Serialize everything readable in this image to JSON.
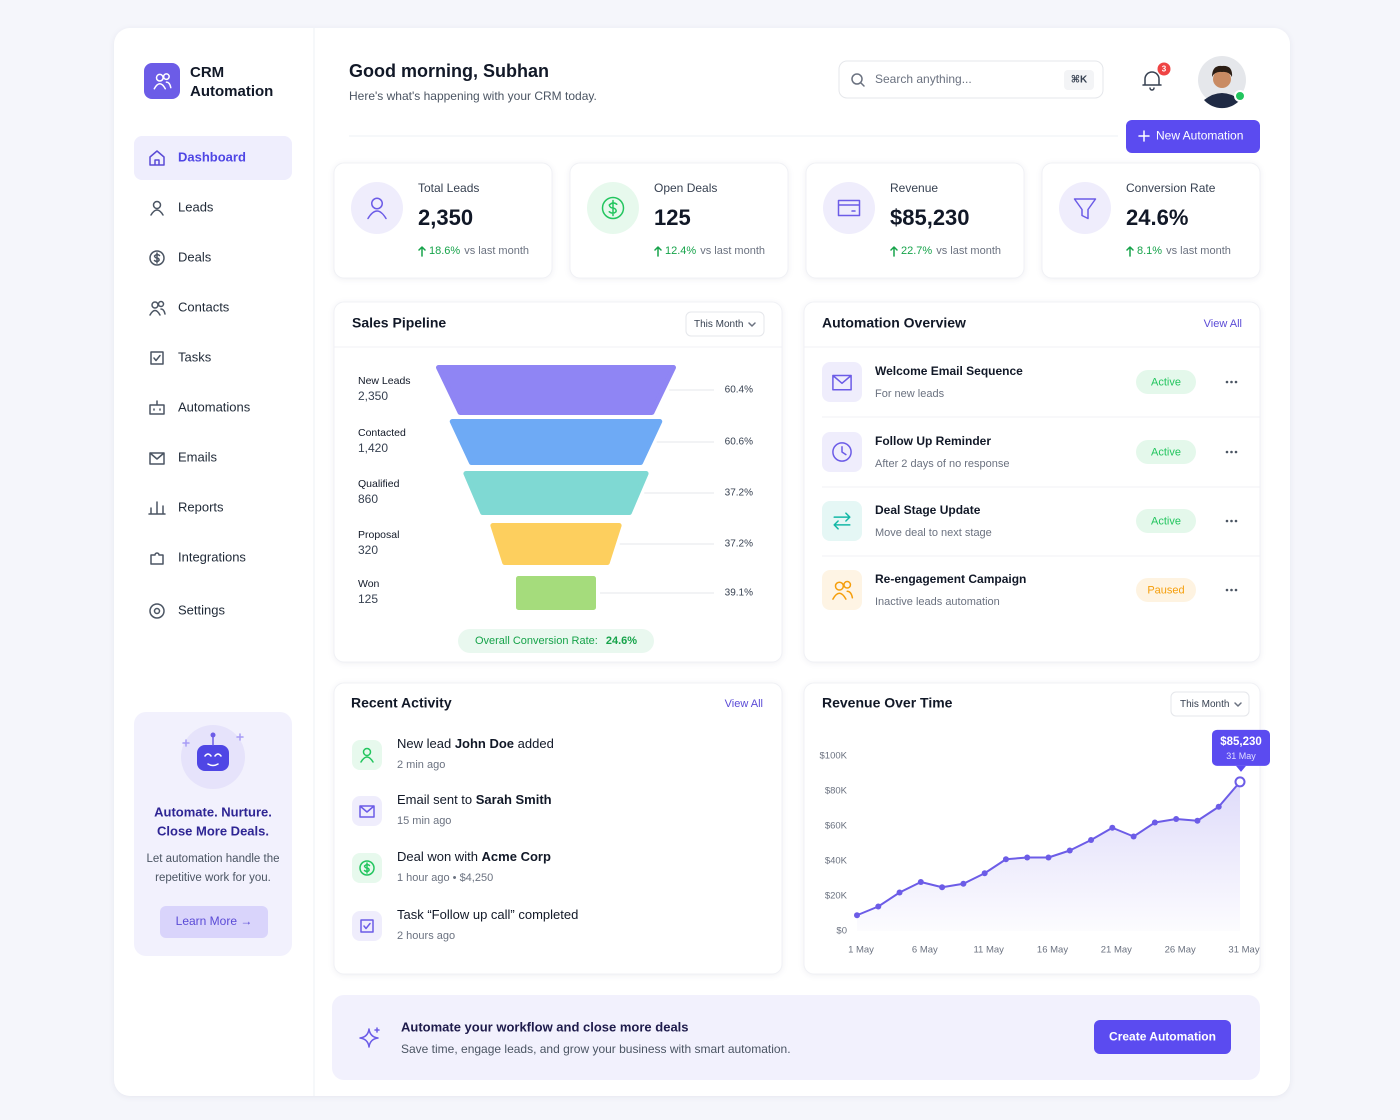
{
  "sidebar": {
    "brand": [
      "CRM",
      "Automation"
    ],
    "nav": [
      "Dashboard",
      "Leads",
      "Deals",
      "Contacts",
      "Tasks",
      "Automations",
      "Emails",
      "Reports",
      "Integrations",
      "Settings"
    ],
    "promo": {
      "title": [
        "Automate. Nurture.",
        "Close More Deals."
      ],
      "text": [
        "Let automation handle the",
        "repetitive work for you."
      ],
      "button": "Learn More →"
    }
  },
  "header": {
    "greeting": "Good morning, Subhan",
    "subtitle": "Here's what's happening with your CRM today.",
    "search": "Search anything...",
    "shortcut": "⌘K",
    "notifications": "3",
    "new_button": "New Automation"
  },
  "kpis": [
    {
      "label": "Total Leads",
      "value": "2,350",
      "change": "18.6%",
      "note": "vs last month",
      "color": "#6c5ce7"
    },
    {
      "label": "Open Deals",
      "value": "125",
      "change": "12.4%",
      "note": "vs last month",
      "color": "#22c55e"
    },
    {
      "label": "Revenue",
      "value": "$85,230",
      "change": "22.7%",
      "note": "vs last month",
      "color": "#6c5ce7"
    },
    {
      "label": "Conversion Rate",
      "value": "24.6%",
      "change": "8.1%",
      "note": "vs last month",
      "color": "#6c5ce7"
    }
  ],
  "automation": {
    "title": "Automation Overview",
    "link": "View All",
    "items": [
      {
        "name": "Welcome Email Sequence",
        "desc": "For new leads",
        "status": "Active",
        "icon_color": "#6c5ce7",
        "status_color": "#22c55e"
      },
      {
        "name": "Follow Up Reminder",
        "desc": "After 2 days of no response",
        "status": "Active",
        "icon_color": "#6c5ce7",
        "status_color": "#22c55e"
      },
      {
        "name": "Deal Stage Update",
        "desc": "Move deal to next stage",
        "status": "Active",
        "icon_color": "#14b8a6",
        "status_color": "#22c55e"
      },
      {
        "name": "Re-engagement Campaign",
        "desc": "Inactive leads automation",
        "status": "Paused",
        "icon_color": "#f59e0b",
        "status_color": "#f59e0b"
      }
    ]
  },
  "activity": {
    "title": "Recent Activity",
    "link": "View All",
    "items": [
      {
        "text": [
          "New lead ",
          "John Doe",
          " added"
        ],
        "time": "2 min ago",
        "color": "#22c55e"
      },
      {
        "text": [
          "Email sent to ",
          "Sarah Smith"
        ],
        "time": "15 min ago",
        "color": "#6c5ce7"
      },
      {
        "text": [
          "Deal won with ",
          "Acme Corp"
        ],
        "time": "1 hour ago • $4,250",
        "color": "#22c55e"
      },
      {
        "text": [
          "Task “Follow up call” completed"
        ],
        "time": "2 hours ago",
        "color": "#6c5ce7"
      }
    ]
  },
  "cta": {
    "title": "Automate your workflow and close more deals",
    "text": "Save time, engage leads, and grow your business with smart automation.",
    "button": "Create Automation"
  },
  "chart_data": [
    {
      "type": "funnel",
      "title": "Sales Pipeline",
      "filter": "This Month",
      "categories": [
        "New Leads",
        "Contacted",
        "Qualified",
        "Proposal",
        "Won"
      ],
      "values": [
        2350,
        1420,
        860,
        320,
        125
      ],
      "value_labels": [
        "2,350",
        "1,420",
        "860",
        "320",
        "125"
      ],
      "colors": [
        "#8f85f4",
        "#6eaaf5",
        "#7fd9d3",
        "#fdcf5e",
        "#a5dc7c"
      ],
      "rates": [
        {
          "value": 60.4,
          "label": "60.4%"
        },
        {
          "value": 60.6,
          "label": "60.6%"
        },
        {
          "value": 37.2,
          "label": "37.2%"
        },
        {
          "value": 37.2,
          "label": "37.2%"
        },
        {
          "value": 39.1,
          "label": "39.1%"
        }
      ],
      "footer_label": "Overall Conversion Rate:",
      "footer_value": "24.6%"
    },
    {
      "type": "line",
      "title": "Revenue Over Time",
      "filter": "This Month",
      "color": "#6c5ce7",
      "categories": [
        "1 May",
        null,
        null,
        "6 May",
        null,
        null,
        "11 May",
        null,
        null,
        "16 May",
        null,
        null,
        "21 May",
        null,
        null,
        "26 May",
        null,
        null,
        "31 May"
      ],
      "values": [
        9000,
        14000,
        22000,
        28000,
        25000,
        27000,
        33000,
        41000,
        42000,
        42000,
        46000,
        52000,
        59000,
        54000,
        62000,
        64000,
        63000,
        71000,
        85230
      ],
      "ylim": [
        0,
        100000
      ],
      "yticks": [
        {
          "value": 0,
          "label": "$0"
        },
        {
          "value": 20000,
          "label": "$20K"
        },
        {
          "value": 40000,
          "label": "$40K"
        },
        {
          "value": 60000,
          "label": "$60K"
        },
        {
          "value": 80000,
          "label": "$80K"
        },
        {
          "value": 100000,
          "label": "$100K"
        }
      ],
      "annotation": "$85,230"
    }
  ]
}
